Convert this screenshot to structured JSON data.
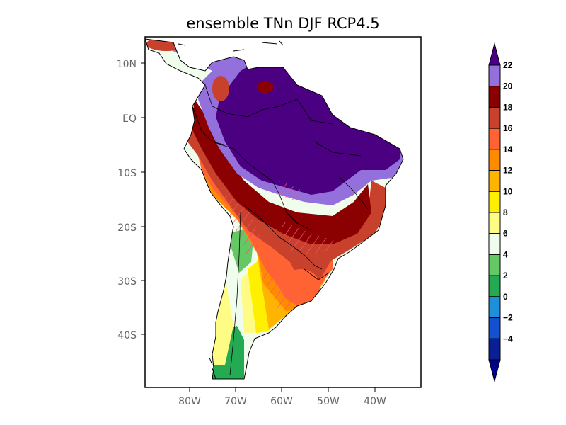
{
  "title": "ensemble TNn DJF RCP4.5",
  "map": {
    "lat_ticks": [
      "10N",
      "EQ",
      "10S",
      "20S",
      "30S",
      "40S"
    ],
    "lon_ticks": [
      "80W",
      "70W",
      "60W",
      "50W",
      "40W"
    ]
  },
  "colorbar": {
    "labels": [
      "22",
      "20",
      "18",
      "16",
      "14",
      "12",
      "10",
      "8",
      "6",
      "4",
      "2",
      "0",
      "−2",
      "−4"
    ],
    "colors": [
      "#4b0082",
      "#9370db",
      "#8b0000",
      "#c8412c",
      "#ff6333",
      "#ff8c00",
      "#ffb400",
      "#ffef00",
      "#fffc86",
      "#f1fdec",
      "#64c864",
      "#23aa52",
      "#1e8fd9",
      "#1450d2",
      "#0a1e96",
      "#00008b"
    ]
  },
  "legend_levels": {
    "purple_dark": "#4b0082",
    "purple_light": "#9370db",
    "dark_red": "#8b0000",
    "red": "#c8412c",
    "orange_red": "#ff6333",
    "orange": "#ff8c00",
    "amber": "#ffb400",
    "yellow": "#ffef00",
    "light_yellow": "#fffc86",
    "pale_green": "#f1fdec",
    "green": "#64c864",
    "dark_green": "#23aa52"
  }
}
